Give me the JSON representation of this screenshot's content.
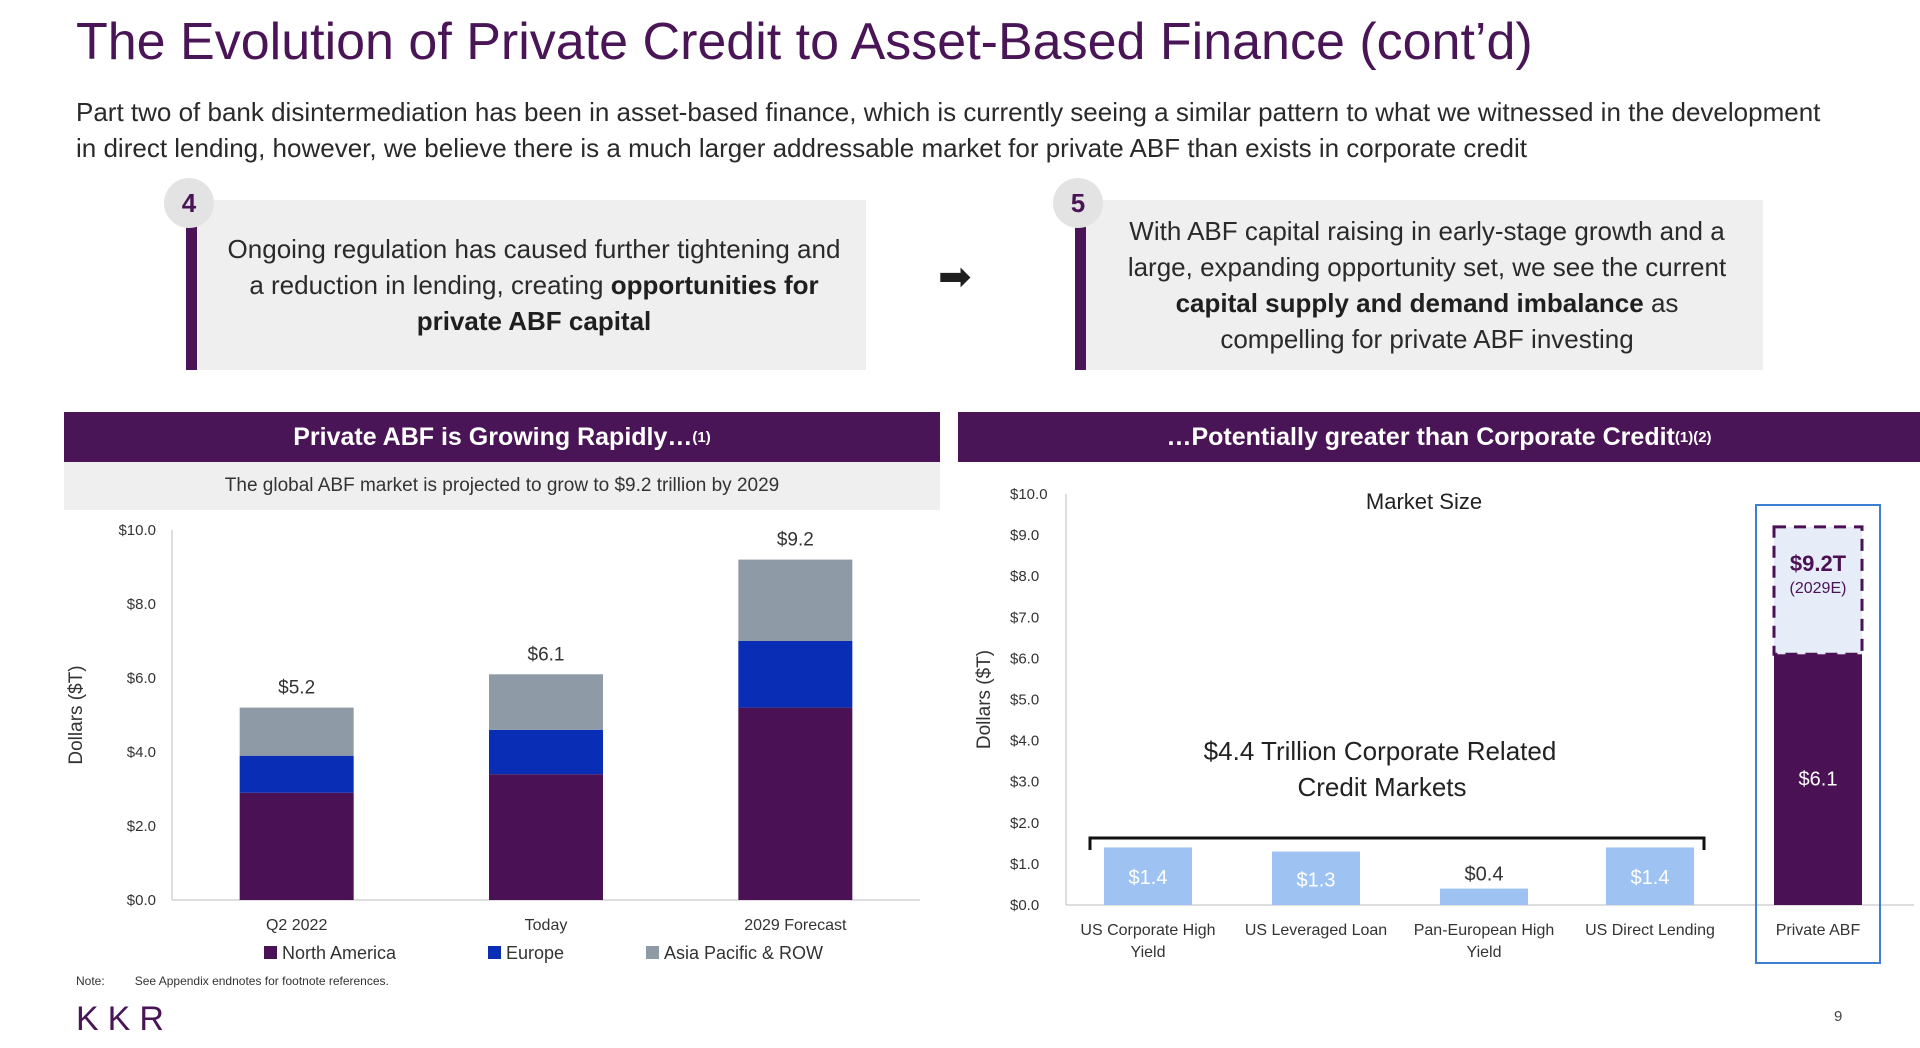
{
  "title": "The Evolution of Private Credit to Asset-Based Finance (cont’d)",
  "subtitle": "Part two of bank disintermediation has been in asset-based finance, which is currently seeing a similar pattern to what we witnessed in the development in direct lending, however, we believe there is a much larger addressable market for private ABF than exists in corporate credit",
  "callouts": [
    {
      "number": "4",
      "text_pre": "Ongoing regulation has caused further tightening and a reduction in lending, creating ",
      "text_bold": "opportunities for private ABF capital",
      "text_post": ""
    },
    {
      "number": "5",
      "text_pre": "With ABF capital raising in early-stage growth and a large, expanding opportunity set, we see the current ",
      "text_bold": "capital supply and demand imbalance",
      "text_post": " as compelling for private ABF investing"
    }
  ],
  "left_panel": {
    "header": "Private ABF is Growing Rapidly…",
    "header_sup": "(1)",
    "subheader": "The global ABF market is projected to grow to $9.2 trillion by 2029"
  },
  "right_panel": {
    "header": "…Potentially greater than Corporate Credit",
    "header_sup": "(1)(2)"
  },
  "chart_data": [
    {
      "type": "bar",
      "stacked": true,
      "categories": [
        "Q2 2022",
        "Today",
        "2029 Forecast"
      ],
      "series": [
        {
          "name": "North America",
          "values": [
            2.9,
            3.4,
            5.2
          ],
          "color": "#4a1254"
        },
        {
          "name": "Europe",
          "values": [
            1.0,
            1.2,
            1.8
          ],
          "color": "#0a2db5"
        },
        {
          "name": "Asia Pacific & ROW",
          "values": [
            1.3,
            1.5,
            2.2
          ],
          "color": "#8e9ba6"
        }
      ],
      "totals": [
        "$5.2",
        "$6.1",
        "$9.2"
      ],
      "ylabel": "Dollars ($T)",
      "ylim": [
        0,
        10
      ],
      "yticks": [
        "$0.0",
        "$2.0",
        "$4.0",
        "$6.0",
        "$8.0",
        "$10.0"
      ],
      "legend": "bottom"
    },
    {
      "type": "bar",
      "title": "Market Size",
      "categories": [
        "US Corporate High Yield",
        "US Leveraged Loan",
        "Pan-European High Yield",
        "US Direct Lending",
        "Private ABF"
      ],
      "values": [
        1.4,
        1.3,
        0.4,
        1.4,
        6.1
      ],
      "labels": [
        "$1.4",
        "$1.3",
        "$0.4",
        "$1.4",
        "$6.1"
      ],
      "colors": [
        "#9ec3f2",
        "#9ec3f2",
        "#9ec3f2",
        "#9ec3f2",
        "#4a1254"
      ],
      "forecast_value": 9.2,
      "forecast_label": "$9.2T",
      "forecast_sublabel": "(2029E)",
      "bracket_label": "$4.4 Trillion Corporate Related Credit Markets",
      "ylabel": "Dollars ($T)",
      "ylim": [
        0,
        10
      ],
      "yticks": [
        "$0.0",
        "$1.0",
        "$2.0",
        "$3.0",
        "$4.0",
        "$5.0",
        "$6.0",
        "$7.0",
        "$8.0",
        "$9.0",
        "$10.0"
      ]
    }
  ],
  "footer": {
    "note_label": "Note:",
    "note_text": "See Appendix endnotes for footnote references.",
    "logo": "KKR",
    "page_number": "9"
  }
}
